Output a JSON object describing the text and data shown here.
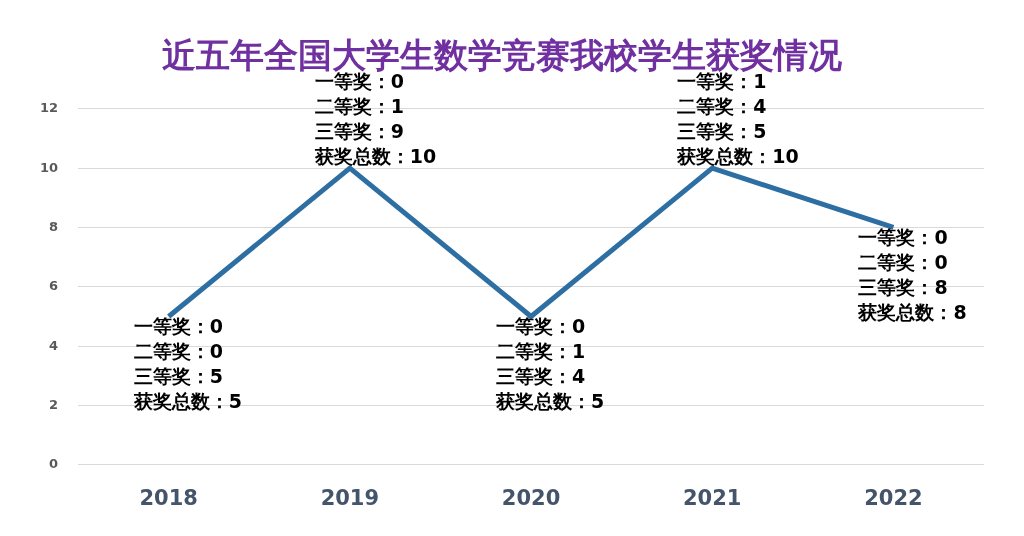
{
  "chart_data": {
    "type": "line",
    "title": "近五年全国大学生数学竞赛我校学生获奖情况",
    "categories": [
      "2018",
      "2019",
      "2020",
      "2021",
      "2022"
    ],
    "series": [
      {
        "color": "#2e6fa3",
        "values": [
          5,
          10,
          5,
          10,
          8
        ]
      }
    ],
    "ylim": [
      0,
      12
    ],
    "yticks": [
      0,
      2,
      4,
      6,
      8,
      10,
      12
    ],
    "grid": "y",
    "legend": false,
    "marker": "none",
    "line_style": "solid",
    "annotations": [
      {
        "text": "一等奖：0\n二等奖：0\n三等奖：5\n获奖总数：5",
        "x": "2018",
        "y": 5
      },
      {
        "text": "一等奖：0\n二等奖：1\n三等奖：9\n获奖总数：10",
        "x": "2019",
        "y": 10
      },
      {
        "text": "一等奖：0\n二等奖：1\n三等奖：4\n获奖总数：5",
        "x": "2020",
        "y": 5
      },
      {
        "text": "一等奖：1\n二等奖：4\n三等奖：5\n获奖总数：10",
        "x": "2021",
        "y": 10
      },
      {
        "text": "一等奖：0\n二等奖：0\n三等奖：8\n获奖总数：8",
        "x": "2022",
        "y": 8
      }
    ]
  }
}
